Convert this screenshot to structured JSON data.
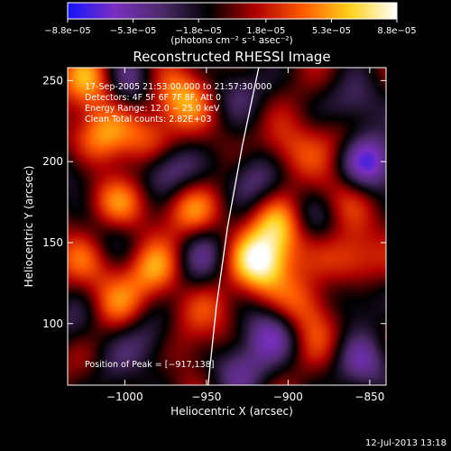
{
  "chart_data": {
    "type": "heatmap",
    "title": "Reconstructed RHESSI Image",
    "xlabel": "Heliocentric X (arcsec)",
    "ylabel": "Heliocentric Y (arcsec)",
    "xlim": [
      -1035,
      -840
    ],
    "ylim": [
      62,
      258
    ],
    "x_ticks": [
      -1000,
      -950,
      -900,
      -850
    ],
    "x_tick_labels": [
      "−1000",
      "−950",
      "−900",
      "−850"
    ],
    "y_ticks": [
      100,
      150,
      200,
      250
    ],
    "y_tick_labels": [
      "100",
      "150",
      "200",
      "250"
    ],
    "colorbar": {
      "range": [
        -8.8e-05,
        8.8e-05
      ],
      "tick_values": [
        -8.8e-05,
        -5.3e-05,
        -1.8e-05,
        1.8e-05,
        5.3e-05,
        8.8e-05
      ],
      "tick_labels": [
        "−8.8e−05",
        "−5.3e−05",
        "−1.8e−05",
        "1.8e−05",
        "5.3e−05",
        "8.8e−05"
      ],
      "unit_label": "(photons cm⁻² s⁻¹ asec⁻²)",
      "colors": [
        "#1414ff",
        "#7a2fbf",
        "#4d2a6a",
        "#000000",
        "#b00000",
        "#ff5a00",
        "#ffd21a",
        "#ffffff"
      ]
    },
    "annotations": [
      "17‑Sep‑2005 21:53:00.000 to 21:57:30.000",
      "Detectors: 4F 5F 6F 7F 8F, Att 0",
      "Energy Range: 12.0 − 25.0 keV",
      "Clean     Total counts: 2.82E+03"
    ],
    "peak_label": "Position of Peak = [−917,138]",
    "peak": {
      "x": -917,
      "y": 138
    },
    "limb_curve": [
      [
        -949,
        62
      ],
      [
        -944,
        110
      ],
      [
        -937,
        160
      ],
      [
        -928,
        210
      ],
      [
        -918,
        258
      ]
    ],
    "sources": [
      {
        "x": -1020,
        "y": 250,
        "v": 6e-05
      },
      {
        "x": -965,
        "y": 240,
        "v": 5.5e-05
      },
      {
        "x": -1015,
        "y": 215,
        "v": 5e-05
      },
      {
        "x": -985,
        "y": 212,
        "v": 4e-05
      },
      {
        "x": -900,
        "y": 205,
        "v": 3.2e-05
      },
      {
        "x": -870,
        "y": 215,
        "v": 2e-05
      },
      {
        "x": -1005,
        "y": 175,
        "v": 4.8e-05
      },
      {
        "x": -960,
        "y": 170,
        "v": 4.5e-05
      },
      {
        "x": -870,
        "y": 175,
        "v": 3e-05
      },
      {
        "x": -1025,
        "y": 140,
        "v": 3.5e-05
      },
      {
        "x": -980,
        "y": 132,
        "v": 5.5e-05
      },
      {
        "x": -917,
        "y": 138,
        "v": 8.8e-05
      },
      {
        "x": -905,
        "y": 160,
        "v": 6e-05
      },
      {
        "x": -860,
        "y": 140,
        "v": 4.2e-05
      },
      {
        "x": -1005,
        "y": 110,
        "v": 3.8e-05
      },
      {
        "x": -950,
        "y": 112,
        "v": 3e-05
      },
      {
        "x": -890,
        "y": 110,
        "v": 4.5e-05
      },
      {
        "x": -1020,
        "y": 72,
        "v": 2.5e-05
      },
      {
        "x": -960,
        "y": 90,
        "v": 2e-05
      },
      {
        "x": -880,
        "y": 88,
        "v": 1.8e-05
      },
      {
        "x": -1000,
        "y": 250,
        "v": -5e-05
      },
      {
        "x": -930,
        "y": 245,
        "v": -3.5e-05
      },
      {
        "x": -860,
        "y": 235,
        "v": -4e-05
      },
      {
        "x": -975,
        "y": 195,
        "v": -6e-05
      },
      {
        "x": -920,
        "y": 190,
        "v": -4.5e-05
      },
      {
        "x": -850,
        "y": 200,
        "v": -7e-05
      },
      {
        "x": -1030,
        "y": 195,
        "v": -3e-05
      },
      {
        "x": -1010,
        "y": 155,
        "v": -3e-05
      },
      {
        "x": -950,
        "y": 145,
        "v": -3.5e-05
      },
      {
        "x": -885,
        "y": 165,
        "v": -4e-05
      },
      {
        "x": -960,
        "y": 125,
        "v": -3e-05
      },
      {
        "x": -860,
        "y": 115,
        "v": -3.5e-05
      },
      {
        "x": -1030,
        "y": 100,
        "v": -3e-05
      },
      {
        "x": -985,
        "y": 92,
        "v": -4e-05
      },
      {
        "x": -910,
        "y": 95,
        "v": -5.5e-05
      },
      {
        "x": -1010,
        "y": 70,
        "v": -4e-05
      },
      {
        "x": -930,
        "y": 72,
        "v": -4.5e-05
      },
      {
        "x": -855,
        "y": 75,
        "v": -5e-05
      }
    ]
  },
  "footer": {
    "timestamp": "12-Jul-2013 13:18"
  }
}
